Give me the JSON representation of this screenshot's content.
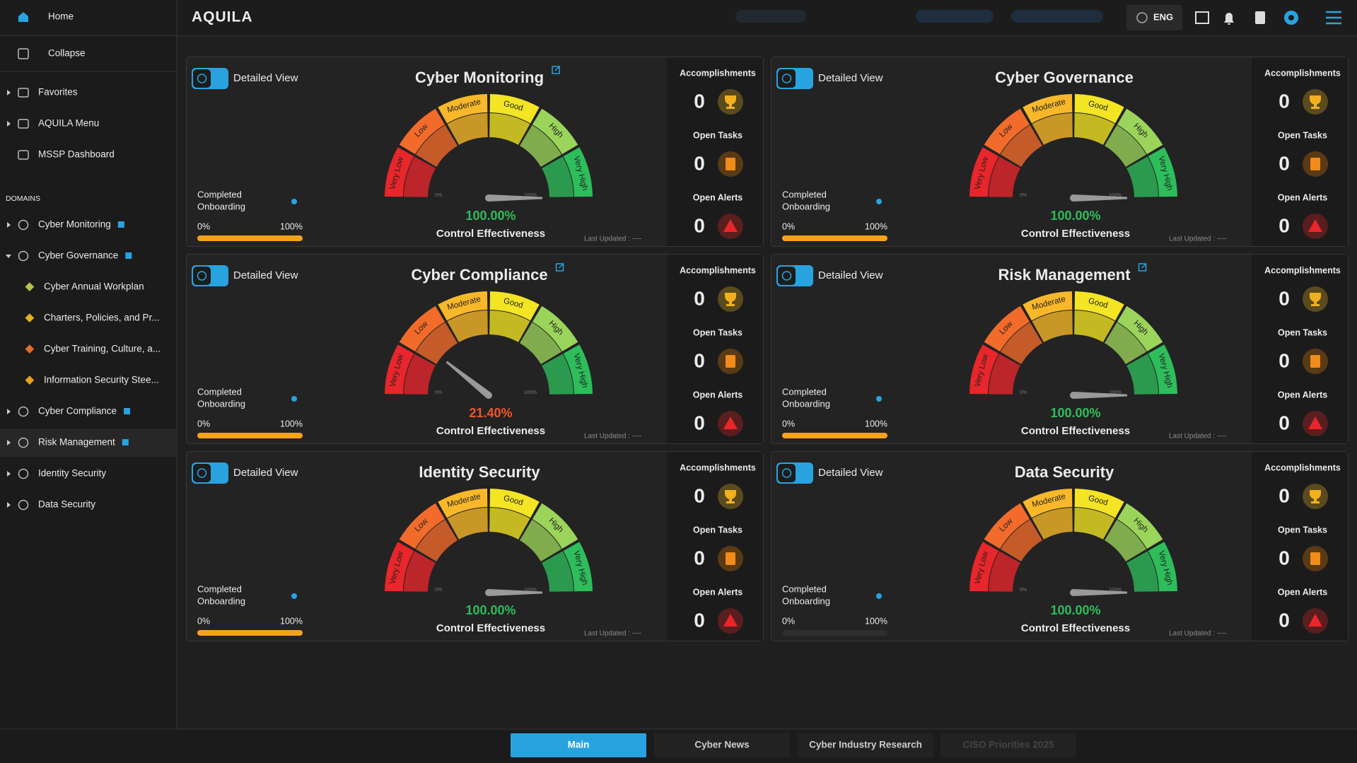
{
  "header": {
    "logo": "AQUILA",
    "language": "ENG"
  },
  "sidebar": {
    "top": [
      "Home",
      "Collapse"
    ],
    "menu": [
      {
        "label": "Favorites",
        "expandable": true
      },
      {
        "label": "AQUILA Menu",
        "expandable": true
      },
      {
        "label": "MSSP Dashboard",
        "expandable": false
      }
    ],
    "domains_heading": "DOMAINS",
    "domains": [
      {
        "label": "Cyber Monitoring",
        "level": 0,
        "expanded": false,
        "external_link": true
      },
      {
        "label": "Cyber Governance",
        "level": 0,
        "expanded": true,
        "external_link": true
      },
      {
        "label": "Cyber Annual Workplan",
        "level": 1
      },
      {
        "label": "Charters, Policies, and Pr...",
        "level": 1
      },
      {
        "label": "Cyber Training, Culture, a...",
        "level": 1
      },
      {
        "label": "Information Security Stee...",
        "level": 1
      },
      {
        "label": "Cyber Compliance",
        "level": 0,
        "expanded": false,
        "external_link": true
      },
      {
        "label": "Risk Management",
        "level": 0,
        "expanded": false,
        "external_link": true,
        "active": true
      },
      {
        "label": "Identity Security",
        "level": 0,
        "expanded": false,
        "external_link": false
      },
      {
        "label": "Data Security",
        "level": 0,
        "expanded": false,
        "external_link": false
      }
    ]
  },
  "card_common": {
    "toggle_label": "Detailed View",
    "onboarding_label": [
      "Completed",
      "Onboarding"
    ],
    "onboarding_min": "0%",
    "onboarding_max": "100%",
    "caption": "Control Effectiveness",
    "last_updated": "Last Updated : ----",
    "stat_labels": [
      "Accomplishments",
      "Open Tasks",
      "Open Alerts"
    ],
    "gauge_bands": [
      {
        "label": "Very Low",
        "color": "#e8262b"
      },
      {
        "label": "Low",
        "color": "#f26b2b"
      },
      {
        "label": "Moderate",
        "color": "#f9b82a"
      },
      {
        "label": "Good",
        "color": "#f3e424"
      },
      {
        "label": "High",
        "color": "#9bd45a"
      },
      {
        "label": "Very High",
        "color": "#2ebd5b"
      }
    ],
    "gauge_scale": [
      {
        "value": 0,
        "label": "0%"
      },
      {
        "value": 100,
        "label": "100%"
      }
    ]
  },
  "cards": [
    {
      "title": "Cyber Monitoring",
      "external_link": true,
      "onboarding_percent": 100,
      "gauge_value": 100,
      "gauge_label": "100.00%",
      "gauge_color": "#2ebd5b",
      "stats": [
        0,
        0,
        0
      ]
    },
    {
      "title": "Cyber Governance",
      "external_link": false,
      "onboarding_percent": 100,
      "gauge_value": 100,
      "gauge_label": "100.00%",
      "gauge_color": "#2ebd5b",
      "stats": [
        0,
        0,
        0
      ]
    },
    {
      "title": "Cyber Compliance",
      "external_link": true,
      "onboarding_percent": 100,
      "gauge_value": 21.4,
      "gauge_label": "21.40%",
      "gauge_color": "#f2532b",
      "stats": [
        0,
        0,
        0
      ]
    },
    {
      "title": "Risk Management",
      "external_link": true,
      "onboarding_percent": 100,
      "gauge_value": 100,
      "gauge_label": "100.00%",
      "gauge_color": "#2ebd5b",
      "stats": [
        0,
        0,
        0
      ]
    },
    {
      "title": "Identity Security",
      "external_link": false,
      "onboarding_percent": 100,
      "gauge_value": 100,
      "gauge_label": "100.00%",
      "gauge_color": "#2ebd5b",
      "stats": [
        0,
        0,
        0
      ]
    },
    {
      "title": "Data Security",
      "external_link": false,
      "onboarding_percent": 0,
      "gauge_value": 100,
      "gauge_label": "100.00%",
      "gauge_color": "#2ebd5b",
      "stats": [
        0,
        0,
        0
      ]
    }
  ],
  "tabs": [
    {
      "label": "Main",
      "active": true
    },
    {
      "label": "Cyber News"
    },
    {
      "label": "Cyber Industry Research"
    },
    {
      "label": "CISO Priorities 2025",
      "disabled": true
    }
  ]
}
